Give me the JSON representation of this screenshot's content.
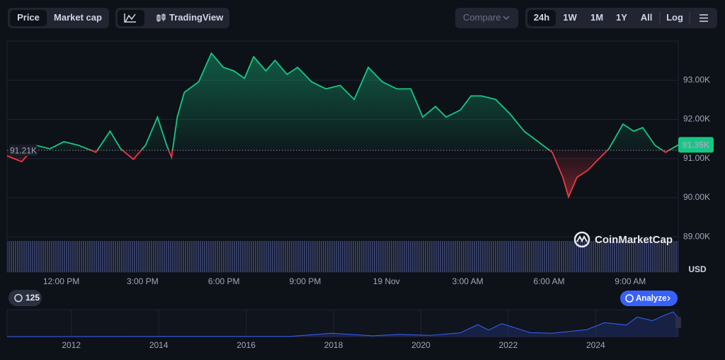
{
  "ui": {
    "tabs": [
      "Price",
      "Market cap"
    ],
    "tradingview": "TradingView",
    "compare": "Compare",
    "ranges": [
      "24h",
      "1W",
      "1M",
      "1Y",
      "All"
    ],
    "log": "Log",
    "currency": "USD",
    "brand": "CoinMarketCap",
    "badge": "125",
    "analyze": "Analyze"
  },
  "chart_data": [
    {
      "type": "line",
      "color": "#16c784",
      "negative_color": "#ea3943",
      "grid": true,
      "baseline": {
        "value": 91210,
        "label": "91.21K"
      },
      "last_price": {
        "value": 91350,
        "label": "91.35K"
      },
      "x": [
        0,
        0.54,
        1.06,
        1.58,
        2.1,
        2.63,
        3.28,
        3.8,
        4.19,
        4.66,
        5.11,
        5.55,
        5.89,
        6.07,
        6.28,
        6.54,
        7.07,
        7.54,
        7.98,
        8.37,
        8.76,
        9.1,
        9.55,
        9.89,
        10.33,
        10.72,
        11.24,
        11.77,
        12.29,
        12.81,
        13.33,
        13.85,
        14.38,
        14.9,
        15.34,
        15.81,
        16.2,
        16.73,
        17.12,
        17.51,
        18.03,
        18.55,
        19.08,
        19.6,
        20.12,
        20.51,
        20.72,
        21.03,
        21.43,
        21.82,
        22.21,
        22.73,
        23.12,
        23.46,
        23.91,
        24.3,
        24.77
      ],
      "values": [
        91070,
        90920,
        91340,
        91250,
        91430,
        91340,
        91160,
        91700,
        91250,
        90980,
        91340,
        92060,
        91340,
        91030,
        92060,
        92690,
        92960,
        93690,
        93330,
        93240,
        93050,
        93600,
        93240,
        93510,
        93150,
        93330,
        92960,
        92780,
        92870,
        92510,
        93330,
        92960,
        92780,
        92780,
        92060,
        92330,
        92060,
        92240,
        92600,
        92600,
        92510,
        92150,
        91700,
        91430,
        91160,
        90520,
        90020,
        90520,
        90700,
        90980,
        91250,
        91880,
        91700,
        91790,
        91340,
        91160,
        91350
      ],
      "xlim": [
        0,
        24.77
      ],
      "xticks": [
        {
          "value": 2,
          "label": "12:00 PM"
        },
        {
          "value": 5,
          "label": "3:00 PM"
        },
        {
          "value": 8,
          "label": "6:00 PM"
        },
        {
          "value": 11,
          "label": "9:00 PM"
        },
        {
          "value": 14,
          "label": "19 Nov"
        },
        {
          "value": 17,
          "label": "3:00 AM"
        },
        {
          "value": 20,
          "label": "6:00 AM"
        },
        {
          "value": 23,
          "label": "9:00 AM"
        }
      ],
      "ylim": [
        88100,
        94000
      ],
      "yticks": [
        {
          "value": 89000,
          "label": "89.00K"
        },
        {
          "value": 90000,
          "label": "90.00K"
        },
        {
          "value": 91000,
          "label": "91.00K"
        },
        {
          "value": 92000,
          "label": "92.00K"
        },
        {
          "value": 93000,
          "label": "93.00K"
        }
      ]
    },
    {
      "type": "area",
      "color": "#3861fb",
      "x": [
        2010.53,
        2013.9,
        2017.0,
        2017.96,
        2018.9,
        2019.5,
        2020.2,
        2020.9,
        2021.3,
        2021.55,
        2021.85,
        2022.5,
        2023.0,
        2023.8,
        2024.2,
        2024.7,
        2024.95,
        2025.3,
        2025.6,
        2025.78,
        2025.89
      ],
      "values": [
        0,
        1000,
        1000,
        17000,
        4000,
        11000,
        6000,
        19000,
        60000,
        33000,
        65000,
        20000,
        17000,
        35000,
        70000,
        58000,
        98000,
        80000,
        110000,
        124000,
        91350
      ],
      "xlim": [
        2010.53,
        2025.89
      ],
      "ylim": [
        0,
        135000
      ],
      "xticks": [
        2012,
        2014,
        2016,
        2018,
        2020,
        2022,
        2024
      ]
    }
  ]
}
